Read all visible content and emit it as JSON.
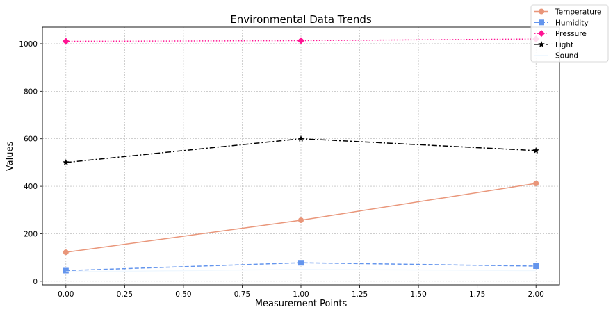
{
  "chart_data": {
    "type": "line",
    "title": "Environmental Data Trends",
    "xlabel": "Measurement Points",
    "ylabel": "Values",
    "x": [
      0,
      1,
      2
    ],
    "xlim": [
      -0.1,
      2.1
    ],
    "ylim": [
      -15,
      1070
    ],
    "x_ticks": [
      0.0,
      0.25,
      0.5,
      0.75,
      1.0,
      1.25,
      1.5,
      1.75,
      2.0
    ],
    "x_tick_labels": [
      "0.00",
      "0.25",
      "0.50",
      "0.75",
      "1.00",
      "1.25",
      "1.50",
      "1.75",
      "2.00"
    ],
    "y_ticks": [
      0,
      200,
      400,
      600,
      800,
      1000
    ],
    "y_tick_labels": [
      "0",
      "200",
      "400",
      "600",
      "800",
      "1000"
    ],
    "grid": true,
    "legend_position": "top-right",
    "series": [
      {
        "name": "Temperature",
        "values": [
          122,
          257,
          412
        ],
        "color": "#E9967A",
        "line_style": "solid",
        "marker": "circle"
      },
      {
        "name": "Humidity",
        "values": [
          45,
          78,
          64
        ],
        "color": "#6495ED",
        "line_style": "dashed",
        "marker": "square"
      },
      {
        "name": "Pressure",
        "values": [
          1010,
          1013,
          1020
        ],
        "color": "#FF1493",
        "line_style": "dotted",
        "marker": "diamond"
      },
      {
        "name": "Light",
        "values": [
          500,
          600,
          550
        ],
        "color": "#000000",
        "line_style": "dashdot",
        "marker": "star"
      },
      {
        "name": "Sound",
        "values": [
          40,
          50,
          45
        ],
        "color": "#F0F8FF",
        "line_style": "solid",
        "marker": "none"
      }
    ]
  }
}
